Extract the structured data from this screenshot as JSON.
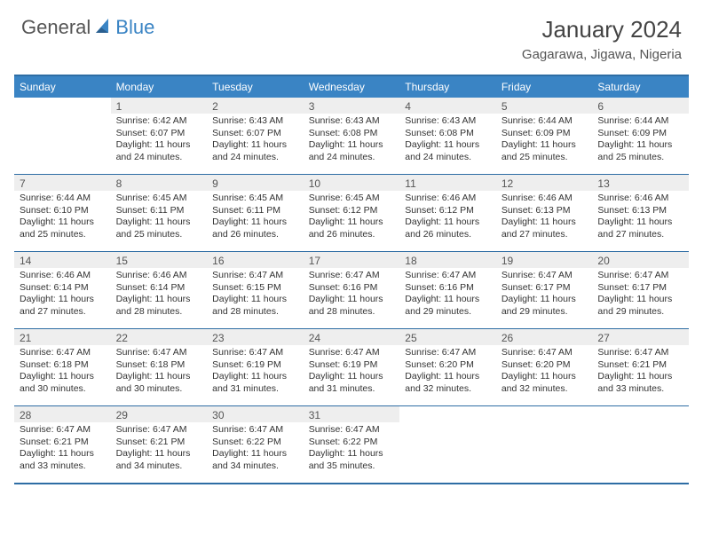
{
  "logo": {
    "general": "General",
    "blue": "Blue"
  },
  "title": "January 2024",
  "location": "Gagarawa, Jigawa, Nigeria",
  "colors": {
    "header_bg": "#3a84c4",
    "border": "#2e6da4",
    "daynum_bg": "#eeeeee",
    "text": "#333333",
    "logo_gray": "#555555",
    "logo_blue": "#3a84c4"
  },
  "day_headers": [
    "Sunday",
    "Monday",
    "Tuesday",
    "Wednesday",
    "Thursday",
    "Friday",
    "Saturday"
  ],
  "weeks": [
    [
      {
        "n": "",
        "sr": "",
        "ss": "",
        "dl": ""
      },
      {
        "n": "1",
        "sr": "Sunrise: 6:42 AM",
        "ss": "Sunset: 6:07 PM",
        "dl": "Daylight: 11 hours and 24 minutes."
      },
      {
        "n": "2",
        "sr": "Sunrise: 6:43 AM",
        "ss": "Sunset: 6:07 PM",
        "dl": "Daylight: 11 hours and 24 minutes."
      },
      {
        "n": "3",
        "sr": "Sunrise: 6:43 AM",
        "ss": "Sunset: 6:08 PM",
        "dl": "Daylight: 11 hours and 24 minutes."
      },
      {
        "n": "4",
        "sr": "Sunrise: 6:43 AM",
        "ss": "Sunset: 6:08 PM",
        "dl": "Daylight: 11 hours and 24 minutes."
      },
      {
        "n": "5",
        "sr": "Sunrise: 6:44 AM",
        "ss": "Sunset: 6:09 PM",
        "dl": "Daylight: 11 hours and 25 minutes."
      },
      {
        "n": "6",
        "sr": "Sunrise: 6:44 AM",
        "ss": "Sunset: 6:09 PM",
        "dl": "Daylight: 11 hours and 25 minutes."
      }
    ],
    [
      {
        "n": "7",
        "sr": "Sunrise: 6:44 AM",
        "ss": "Sunset: 6:10 PM",
        "dl": "Daylight: 11 hours and 25 minutes."
      },
      {
        "n": "8",
        "sr": "Sunrise: 6:45 AM",
        "ss": "Sunset: 6:11 PM",
        "dl": "Daylight: 11 hours and 25 minutes."
      },
      {
        "n": "9",
        "sr": "Sunrise: 6:45 AM",
        "ss": "Sunset: 6:11 PM",
        "dl": "Daylight: 11 hours and 26 minutes."
      },
      {
        "n": "10",
        "sr": "Sunrise: 6:45 AM",
        "ss": "Sunset: 6:12 PM",
        "dl": "Daylight: 11 hours and 26 minutes."
      },
      {
        "n": "11",
        "sr": "Sunrise: 6:46 AM",
        "ss": "Sunset: 6:12 PM",
        "dl": "Daylight: 11 hours and 26 minutes."
      },
      {
        "n": "12",
        "sr": "Sunrise: 6:46 AM",
        "ss": "Sunset: 6:13 PM",
        "dl": "Daylight: 11 hours and 27 minutes."
      },
      {
        "n": "13",
        "sr": "Sunrise: 6:46 AM",
        "ss": "Sunset: 6:13 PM",
        "dl": "Daylight: 11 hours and 27 minutes."
      }
    ],
    [
      {
        "n": "14",
        "sr": "Sunrise: 6:46 AM",
        "ss": "Sunset: 6:14 PM",
        "dl": "Daylight: 11 hours and 27 minutes."
      },
      {
        "n": "15",
        "sr": "Sunrise: 6:46 AM",
        "ss": "Sunset: 6:14 PM",
        "dl": "Daylight: 11 hours and 28 minutes."
      },
      {
        "n": "16",
        "sr": "Sunrise: 6:47 AM",
        "ss": "Sunset: 6:15 PM",
        "dl": "Daylight: 11 hours and 28 minutes."
      },
      {
        "n": "17",
        "sr": "Sunrise: 6:47 AM",
        "ss": "Sunset: 6:16 PM",
        "dl": "Daylight: 11 hours and 28 minutes."
      },
      {
        "n": "18",
        "sr": "Sunrise: 6:47 AM",
        "ss": "Sunset: 6:16 PM",
        "dl": "Daylight: 11 hours and 29 minutes."
      },
      {
        "n": "19",
        "sr": "Sunrise: 6:47 AM",
        "ss": "Sunset: 6:17 PM",
        "dl": "Daylight: 11 hours and 29 minutes."
      },
      {
        "n": "20",
        "sr": "Sunrise: 6:47 AM",
        "ss": "Sunset: 6:17 PM",
        "dl": "Daylight: 11 hours and 29 minutes."
      }
    ],
    [
      {
        "n": "21",
        "sr": "Sunrise: 6:47 AM",
        "ss": "Sunset: 6:18 PM",
        "dl": "Daylight: 11 hours and 30 minutes."
      },
      {
        "n": "22",
        "sr": "Sunrise: 6:47 AM",
        "ss": "Sunset: 6:18 PM",
        "dl": "Daylight: 11 hours and 30 minutes."
      },
      {
        "n": "23",
        "sr": "Sunrise: 6:47 AM",
        "ss": "Sunset: 6:19 PM",
        "dl": "Daylight: 11 hours and 31 minutes."
      },
      {
        "n": "24",
        "sr": "Sunrise: 6:47 AM",
        "ss": "Sunset: 6:19 PM",
        "dl": "Daylight: 11 hours and 31 minutes."
      },
      {
        "n": "25",
        "sr": "Sunrise: 6:47 AM",
        "ss": "Sunset: 6:20 PM",
        "dl": "Daylight: 11 hours and 32 minutes."
      },
      {
        "n": "26",
        "sr": "Sunrise: 6:47 AM",
        "ss": "Sunset: 6:20 PM",
        "dl": "Daylight: 11 hours and 32 minutes."
      },
      {
        "n": "27",
        "sr": "Sunrise: 6:47 AM",
        "ss": "Sunset: 6:21 PM",
        "dl": "Daylight: 11 hours and 33 minutes."
      }
    ],
    [
      {
        "n": "28",
        "sr": "Sunrise: 6:47 AM",
        "ss": "Sunset: 6:21 PM",
        "dl": "Daylight: 11 hours and 33 minutes."
      },
      {
        "n": "29",
        "sr": "Sunrise: 6:47 AM",
        "ss": "Sunset: 6:21 PM",
        "dl": "Daylight: 11 hours and 34 minutes."
      },
      {
        "n": "30",
        "sr": "Sunrise: 6:47 AM",
        "ss": "Sunset: 6:22 PM",
        "dl": "Daylight: 11 hours and 34 minutes."
      },
      {
        "n": "31",
        "sr": "Sunrise: 6:47 AM",
        "ss": "Sunset: 6:22 PM",
        "dl": "Daylight: 11 hours and 35 minutes."
      },
      {
        "n": "",
        "sr": "",
        "ss": "",
        "dl": ""
      },
      {
        "n": "",
        "sr": "",
        "ss": "",
        "dl": ""
      },
      {
        "n": "",
        "sr": "",
        "ss": "",
        "dl": ""
      }
    ]
  ]
}
